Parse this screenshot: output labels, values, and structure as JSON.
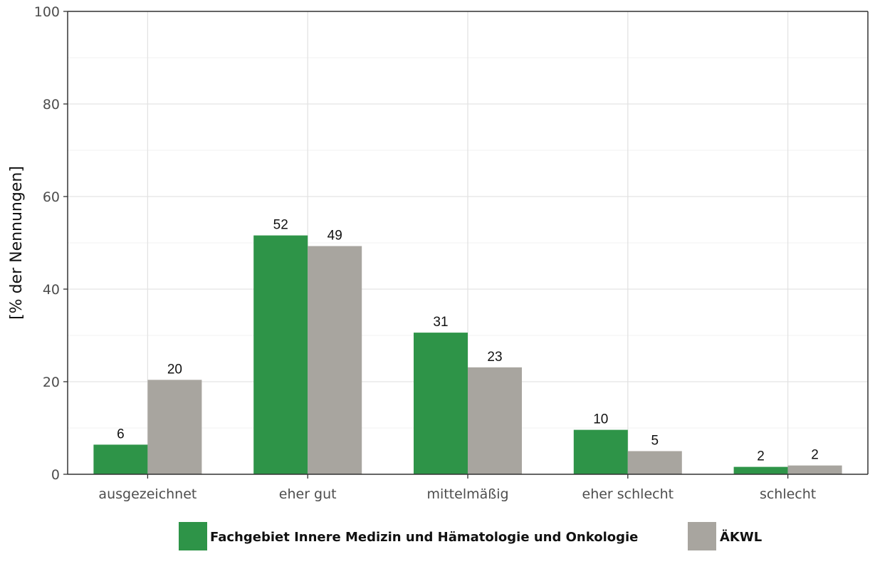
{
  "chart_data": {
    "type": "bar",
    "title": "",
    "xlabel": "",
    "ylabel": "[% der Nennungen]",
    "ylim": [
      0,
      100
    ],
    "yticks": [
      0,
      20,
      40,
      60,
      80,
      100
    ],
    "grid": true,
    "legend_position": "bottom",
    "categories": [
      "ausgezeichnet",
      "eher gut",
      "mittelmäßig",
      "eher schlecht",
      "schlecht"
    ],
    "series": [
      {
        "name": "Fachgebiet Innere Medizin und Hämatologie und Onkologie",
        "color": "#2e9448",
        "values": [
          6.4,
          51.6,
          30.6,
          9.6,
          1.6
        ],
        "labels": [
          "6",
          "52",
          "31",
          "10",
          "2"
        ]
      },
      {
        "name": "ÄKWL",
        "color": "#a8a59f",
        "values": [
          20.4,
          49.3,
          23.1,
          5.0,
          1.9
        ],
        "labels": [
          "20",
          "49",
          "23",
          "5",
          "2"
        ]
      }
    ]
  }
}
